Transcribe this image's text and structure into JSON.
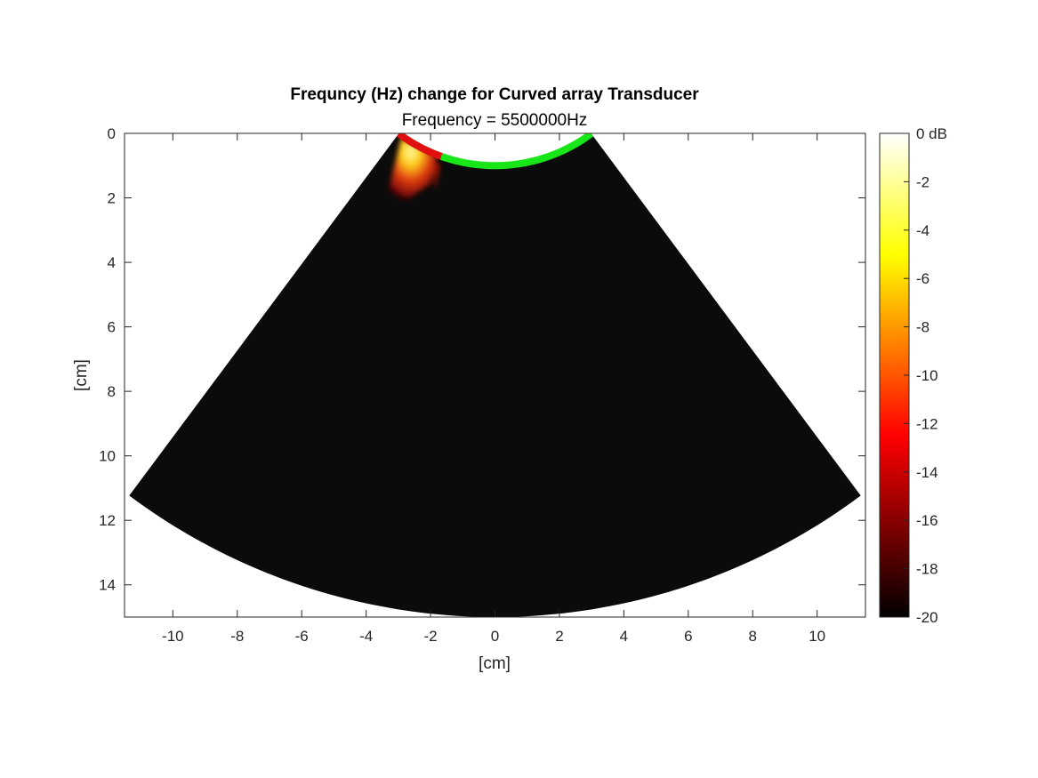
{
  "chart_data": {
    "type": "heatmap",
    "title": "Frequncy (Hz) change for Curved array Transducer",
    "subtitle": "Frequency = 5500000Hz",
    "xlabel": "[cm]",
    "ylabel": "[cm]",
    "xlim": [
      -11.5,
      11.5
    ],
    "ylim": [
      0,
      15
    ],
    "y_reversed": true,
    "xticks": [
      -10,
      -8,
      -6,
      -4,
      -2,
      0,
      2,
      4,
      6,
      8,
      10
    ],
    "yticks": [
      0,
      2,
      4,
      6,
      8,
      10,
      12,
      14
    ],
    "colorbar": {
      "ticks": [
        0,
        -2,
        -4,
        -6,
        -8,
        -10,
        -12,
        -14,
        -16,
        -18,
        -20
      ],
      "tick_labels": [
        "0 dB",
        "-2",
        "-4",
        "-6",
        "-8",
        "-10",
        "-12",
        "-14",
        "-16",
        "-18",
        "-20"
      ],
      "range": [
        -20,
        0
      ],
      "colormap": "hot",
      "colors": [
        "#000000",
        "#ff0000",
        "#ffff00",
        "#ffffff"
      ]
    },
    "sector": {
      "apex_y": -4.0,
      "inner_radius": 5.0,
      "outer_radius": 19.0,
      "half_angle_deg": 36.7,
      "background_color": "#0b0b0b"
    },
    "transducer": {
      "active_elements_color": "#e01010",
      "inactive_elements_color": "#19e619",
      "active_start_deg": -36.7,
      "active_end_deg": -19.5
    },
    "beam": {
      "max_db": -1,
      "centroid": [
        -3.1,
        1.0
      ],
      "extent_to_depth": 2.4
    }
  }
}
